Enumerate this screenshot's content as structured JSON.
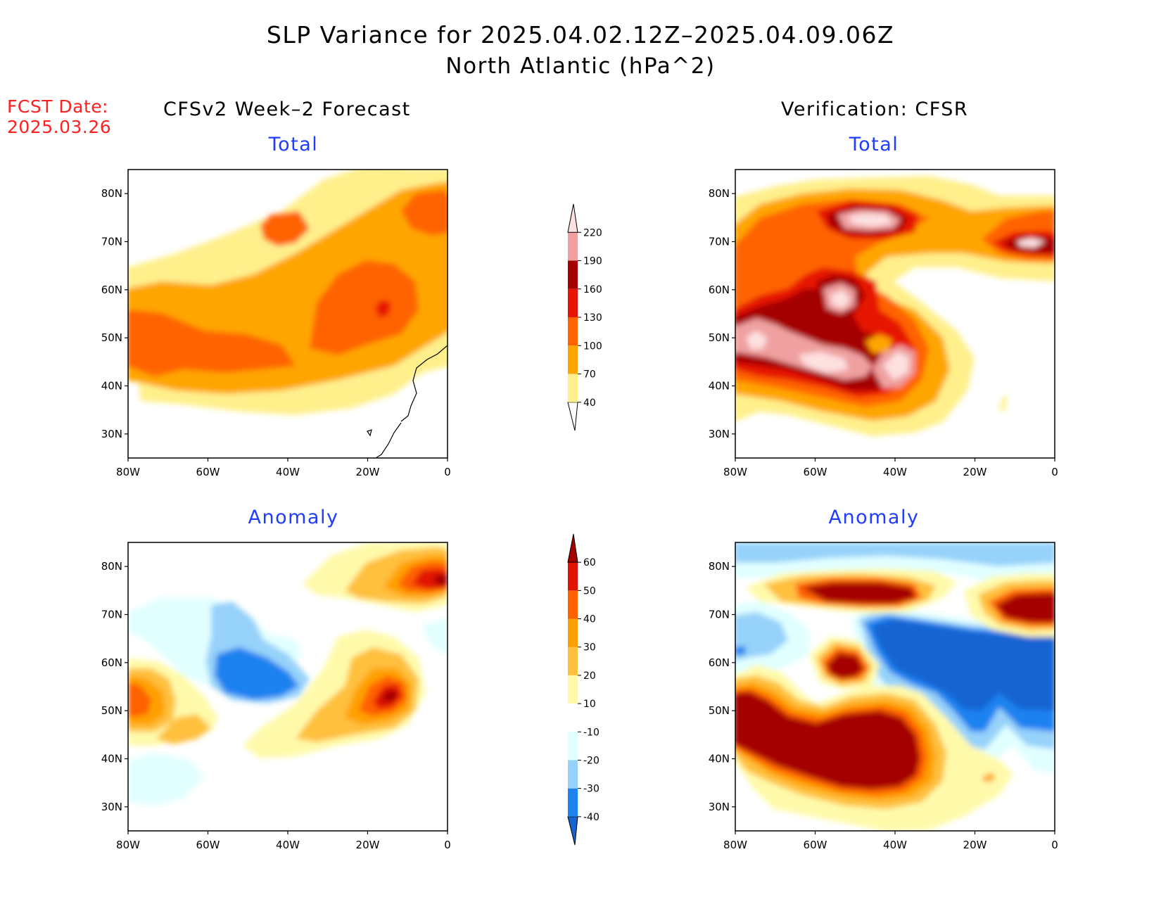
{
  "title": "SLP Variance for 2025.04.02.12Z–2025.04.09.06Z",
  "subtitle": "North Atlantic (hPa^2)",
  "fcst_label": "FCST Date:",
  "fcst_date": "2025.03.26",
  "left_header": "CFSv2 Week–2 Forecast",
  "right_header": "Verification: CFSR",
  "panels": [
    {
      "id": "fc-total",
      "title": "Total"
    },
    {
      "id": "ver-total",
      "title": "Total"
    },
    {
      "id": "fc-anom",
      "title": "Anomaly"
    },
    {
      "id": "ver-anom",
      "title": "Anomaly"
    }
  ],
  "axes": {
    "lon_labels": [
      "80W",
      "60W",
      "40W",
      "20W",
      "0"
    ],
    "lon_values": [
      -80,
      -60,
      -40,
      -20,
      0
    ],
    "lat_labels": [
      "80N",
      "70N",
      "60N",
      "50N",
      "40N",
      "30N"
    ],
    "lat_values": [
      80,
      70,
      60,
      50,
      40,
      30
    ],
    "lon_range": [
      -80,
      0
    ],
    "lat_range": [
      25,
      85
    ]
  },
  "total_scale": {
    "levels": [
      "40",
      "70",
      "100",
      "130",
      "160",
      "190",
      "220"
    ],
    "colors": [
      "#ffffff",
      "#fff08c",
      "#ffa500",
      "#ff6400",
      "#e61400",
      "#a50000",
      "#f0a0a0",
      "#fde0e0"
    ]
  },
  "anomaly_scale": {
    "levels": [
      "-40",
      "-30",
      "-20",
      "-10",
      "10",
      "20",
      "30",
      "40",
      "50",
      "60"
    ],
    "colors": [
      "#1464d2",
      "#1e82f0",
      "#96d2fa",
      "#e1ffff",
      "#ffffff",
      "#fffaaa",
      "#ffc03c",
      "#ffa000",
      "#ff6000",
      "#e11400",
      "#a50000"
    ]
  }
}
